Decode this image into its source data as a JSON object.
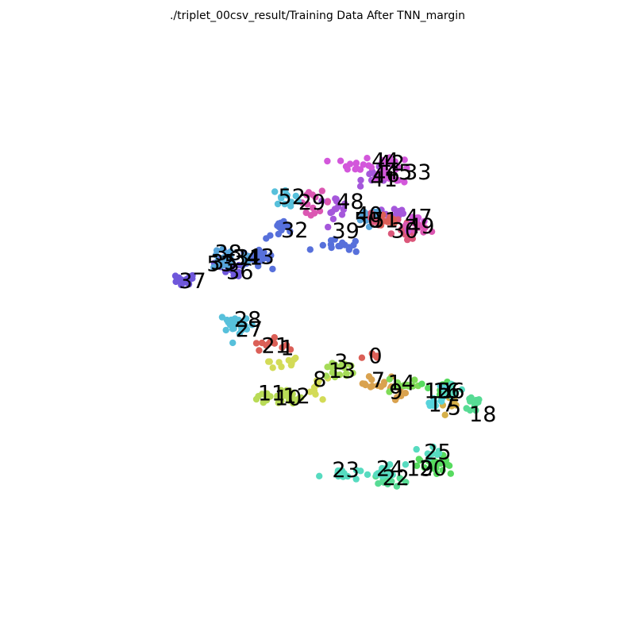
{
  "chart_data": {
    "type": "scatter",
    "title": "./triplet_00csv_result/Training Data After TNN_margin",
    "xlabel": "",
    "ylabel": "",
    "axes_visible": false,
    "grid": false,
    "legend": "none",
    "xlim": [
      0,
      100
    ],
    "ylim": [
      0,
      100
    ],
    "palette": [
      "#db5f57",
      "#dba157",
      "#d3db57",
      "#a5db57",
      "#7fdb57",
      "#57db5f",
      "#57db94",
      "#57d3db",
      "#57a5db",
      "#5770db",
      "#6f57db",
      "#a557db",
      "#d357db",
      "#db57b2",
      "#db577a",
      "#d98b57",
      "#b9db57",
      "#57dbc0",
      "#57c0db",
      "#8b57db"
    ],
    "clusters": [
      {
        "label": "0",
        "cx": 61.0,
        "cy": 42.5,
        "color": "#db5f57",
        "n": 6,
        "spread": [
          2.2,
          0.8
        ],
        "lx": 61.2,
        "ly": 42.8
      },
      {
        "label": "1",
        "cx": 41.0,
        "cy": 41.2,
        "color": "#d3db57",
        "n": 10,
        "spread": [
          4.0,
          1.3
        ],
        "lx": 42.2,
        "ly": 44.5
      },
      {
        "label": "3",
        "cx": 53.0,
        "cy": 40.5,
        "color": "#a5db57",
        "n": 8,
        "spread": [
          2.8,
          1.5
        ],
        "lx": 53.8,
        "ly": 41.5
      },
      {
        "label": "5",
        "cx": 77.5,
        "cy": 31.5,
        "color": "#d6b04a",
        "n": 7,
        "spread": [
          1.8,
          1.8
        ],
        "lx": 78.2,
        "ly": 31.8
      },
      {
        "label": "7",
        "cx": 62.0,
        "cy": 36.8,
        "color": "#d9a24f",
        "n": 12,
        "spread": [
          3.0,
          1.6
        ],
        "lx": 61.8,
        "ly": 37.6
      },
      {
        "label": "8",
        "cx": 49.0,
        "cy": 36.0,
        "color": "#d3db57",
        "n": 10,
        "spread": [
          2.0,
          2.2
        ],
        "lx": 49.2,
        "ly": 37.8
      },
      {
        "label": "9",
        "cx": 65.5,
        "cy": 34.8,
        "color": "#d9a24f",
        "n": 10,
        "spread": [
          2.5,
          1.7
        ],
        "lx": 65.6,
        "ly": 35.2
      },
      {
        "label": "10",
        "cx": 42.0,
        "cy": 33.5,
        "color": "#b9db57",
        "n": 12,
        "spread": [
          3.0,
          1.2
        ],
        "lx": 42.4,
        "ly": 33.8
      },
      {
        "label": "11",
        "cx": 38.0,
        "cy": 33.5,
        "color": "#b9db57",
        "n": 16,
        "spread": [
          3.6,
          1.1
        ],
        "lx": 38.8,
        "ly": 34.8
      },
      {
        "label": "12",
        "cx": 43.5,
        "cy": 34.0,
        "color": "#b9db57",
        "n": 8,
        "spread": [
          2.0,
          1.0
        ],
        "lx": 44.2,
        "ly": 34.2
      },
      {
        "label": "13",
        "cx": 54.0,
        "cy": 39.8,
        "color": "#a5db57",
        "n": 10,
        "spread": [
          3.0,
          1.6
        ],
        "lx": 54.0,
        "ly": 39.7
      },
      {
        "label": "14",
        "cx": 67.0,
        "cy": 36.5,
        "color": "#7fdb57",
        "n": 12,
        "spread": [
          3.0,
          1.8
        ],
        "lx": 66.8,
        "ly": 37.0
      },
      {
        "label": "15",
        "cx": 74.5,
        "cy": 35.5,
        "color": "#57db5f",
        "n": 10,
        "spread": [
          2.4,
          1.8
        ],
        "lx": 74.6,
        "ly": 35.3
      },
      {
        "label": "16",
        "cx": 75.5,
        "cy": 35.2,
        "color": "#57d3db",
        "n": 8,
        "spread": [
          1.6,
          1.6
        ],
        "lx": 76.5,
        "ly": 35.3
      },
      {
        "label": "17",
        "cx": 74.0,
        "cy": 32.8,
        "color": "#57d3db",
        "n": 8,
        "spread": [
          2.0,
          1.2
        ],
        "lx": 75.5,
        "ly": 32.5
      },
      {
        "label": "18",
        "cx": 83.0,
        "cy": 32.5,
        "color": "#57db94",
        "n": 12,
        "spread": [
          2.6,
          2.0
        ],
        "lx": 84.3,
        "ly": 30.3
      },
      {
        "label": "19",
        "cx": 73.5,
        "cy": 20.0,
        "color": "#57db5f",
        "n": 14,
        "spread": [
          2.6,
          1.6
        ],
        "lx": 70.8,
        "ly": 18.7
      },
      {
        "label": "20",
        "cx": 76.0,
        "cy": 19.5,
        "color": "#57db5f",
        "n": 12,
        "spread": [
          2.6,
          1.6
        ],
        "lx": 73.6,
        "ly": 18.8
      },
      {
        "label": "21",
        "cx": 38.0,
        "cy": 45.2,
        "color": "#db5f57",
        "n": 14,
        "spread": [
          3.0,
          1.0
        ],
        "lx": 39.6,
        "ly": 45.0
      },
      {
        "label": "22",
        "cx": 64.5,
        "cy": 16.0,
        "color": "#57db94",
        "n": 14,
        "spread": [
          3.0,
          1.3
        ],
        "lx": 65.6,
        "ly": 16.8
      },
      {
        "label": "23",
        "cx": 53.5,
        "cy": 17.5,
        "color": "#57dbc0",
        "n": 16,
        "spread": [
          3.6,
          1.2
        ],
        "lx": 54.8,
        "ly": 18.5
      },
      {
        "label": "24",
        "cx": 64.0,
        "cy": 18.0,
        "color": "#57dbc0",
        "n": 12,
        "spread": [
          3.0,
          1.4
        ],
        "lx": 64.3,
        "ly": 18.7
      },
      {
        "label": "25",
        "cx": 73.5,
        "cy": 22.5,
        "color": "#57dbc0",
        "n": 8,
        "spread": [
          2.0,
          1.3
        ],
        "lx": 74.6,
        "ly": 22.3
      },
      {
        "label": "26",
        "cx": 78.0,
        "cy": 35.2,
        "color": "#57dbc0",
        "n": 8,
        "spread": [
          1.8,
          1.4
        ],
        "lx": 77.5,
        "ly": 35.3
      },
      {
        "label": "27",
        "cx": 32.0,
        "cy": 48.5,
        "color": "#57c0db",
        "n": 14,
        "spread": [
          2.5,
          1.5
        ],
        "lx": 34.0,
        "ly": 48.5
      },
      {
        "label": "28",
        "cx": 30.5,
        "cy": 50.0,
        "color": "#57c0db",
        "n": 12,
        "spread": [
          2.2,
          1.2
        ],
        "lx": 33.7,
        "ly": 50.6
      },
      {
        "label": "29",
        "cx": 48.0,
        "cy": 75.5,
        "color": "#db57b2",
        "n": 14,
        "spread": [
          3.0,
          1.8
        ],
        "lx": 47.5,
        "ly": 75.6
      },
      {
        "label": "30",
        "cx": 67.5,
        "cy": 69.0,
        "color": "#db577a",
        "n": 12,
        "spread": [
          3.0,
          1.5
        ],
        "lx": 67.5,
        "ly": 69.6
      },
      {
        "label": "31",
        "cx": 35.0,
        "cy": 63.5,
        "color": "#5770db",
        "n": 12,
        "spread": [
          3.0,
          1.5
        ],
        "lx": 34.0,
        "ly": 63.8
      },
      {
        "label": "32",
        "cx": 41.0,
        "cy": 69.5,
        "color": "#5770db",
        "n": 14,
        "spread": [
          2.8,
          1.6
        ],
        "lx": 43.8,
        "ly": 69.7
      },
      {
        "label": "33",
        "cx": 65.0,
        "cy": 73.0,
        "color": "#a557db",
        "n": 12,
        "spread": [
          3.0,
          1.6
        ],
        "lx": 70.3,
        "ly": 82.0
      },
      {
        "label": "34",
        "cx": 34.0,
        "cy": 63.8,
        "color": "#57a5db",
        "n": 10,
        "spread": [
          2.4,
          1.2
        ],
        "lx": 33.3,
        "ly": 63.8
      },
      {
        "label": "35",
        "cx": 29.0,
        "cy": 62.5,
        "color": "#6f57db",
        "n": 12,
        "spread": [
          2.0,
          1.4
        ],
        "lx": 28.6,
        "ly": 62.8
      },
      {
        "label": "36",
        "cx": 30.5,
        "cy": 61.0,
        "color": "#6f57db",
        "n": 12,
        "spread": [
          2.2,
          1.3
        ],
        "lx": 32.0,
        "ly": 60.8
      },
      {
        "label": "37",
        "cx": 19.5,
        "cy": 58.5,
        "color": "#6f57db",
        "n": 16,
        "spread": [
          2.4,
          1.4
        ],
        "lx": 21.8,
        "ly": 58.8
      },
      {
        "label": "38",
        "cx": 29.0,
        "cy": 64.0,
        "color": "#57a5db",
        "n": 10,
        "spread": [
          2.4,
          1.3
        ],
        "lx": 29.5,
        "ly": 64.8
      },
      {
        "label": "39",
        "cx": 53.5,
        "cy": 66.0,
        "color": "#5770db",
        "n": 16,
        "spread": [
          4.0,
          1.2
        ],
        "lx": 54.8,
        "ly": 69.5
      },
      {
        "label": "40",
        "cx": 59.5,
        "cy": 72.0,
        "color": "#57a5db",
        "n": 12,
        "spread": [
          2.6,
          1.8
        ],
        "lx": 59.8,
        "ly": 73.0
      },
      {
        "label": "41",
        "cx": 61.5,
        "cy": 81.0,
        "color": "#a557db",
        "n": 10,
        "spread": [
          2.6,
          1.4
        ],
        "lx": 63.0,
        "ly": 80.5
      },
      {
        "label": "42",
        "cx": 64.0,
        "cy": 84.0,
        "color": "#d357db",
        "n": 10,
        "spread": [
          2.4,
          1.3
        ],
        "lx": 64.6,
        "ly": 84.0
      },
      {
        "label": "43",
        "cx": 37.0,
        "cy": 64.0,
        "color": "#5770db",
        "n": 10,
        "spread": [
          2.4,
          1.2
        ],
        "lx": 36.5,
        "ly": 64.0
      },
      {
        "label": "44",
        "cx": 57.0,
        "cy": 83.5,
        "color": "#d357db",
        "n": 14,
        "spread": [
          3.6,
          1.2
        ],
        "lx": 63.3,
        "ly": 84.5
      },
      {
        "label": "45",
        "cx": 66.0,
        "cy": 81.5,
        "color": "#d357db",
        "n": 10,
        "spread": [
          2.4,
          1.6
        ],
        "lx": 66.2,
        "ly": 82.0
      },
      {
        "label": "46",
        "cx": 63.5,
        "cy": 82.0,
        "color": "#d357db",
        "n": 10,
        "spread": [
          2.4,
          1.4
        ],
        "lx": 63.5,
        "ly": 81.5
      },
      {
        "label": "47",
        "cx": 70.0,
        "cy": 71.0,
        "color": "#d357db",
        "n": 10,
        "spread": [
          2.2,
          1.4
        ],
        "lx": 70.5,
        "ly": 72.5
      },
      {
        "label": "48",
        "cx": 52.0,
        "cy": 74.5,
        "color": "#a557db",
        "n": 14,
        "spread": [
          3.0,
          1.8
        ],
        "lx": 55.8,
        "ly": 75.8
      },
      {
        "label": "49",
        "cx": 70.5,
        "cy": 70.5,
        "color": "#db57b2",
        "n": 10,
        "spread": [
          2.0,
          1.3
        ],
        "lx": 71.0,
        "ly": 70.5
      },
      {
        "label": "50",
        "cx": 61.5,
        "cy": 71.0,
        "color": "#db577a",
        "n": 10,
        "spread": [
          2.4,
          1.6
        ],
        "lx": 59.5,
        "ly": 71.8
      },
      {
        "label": "51",
        "cx": 63.5,
        "cy": 71.5,
        "color": "#db5f57",
        "n": 10,
        "spread": [
          2.2,
          1.4
        ],
        "lx": 63.2,
        "ly": 71.8
      },
      {
        "label": "52",
        "cx": 42.0,
        "cy": 76.5,
        "color": "#57c0db",
        "n": 12,
        "spread": [
          2.6,
          1.4
        ],
        "lx": 43.2,
        "ly": 76.8
      },
      {
        "label": "53",
        "cx": 27.5,
        "cy": 62.5,
        "color": "#57a5db",
        "n": 10,
        "spread": [
          2.0,
          1.3
        ],
        "lx": 27.8,
        "ly": 62.5
      }
    ]
  }
}
